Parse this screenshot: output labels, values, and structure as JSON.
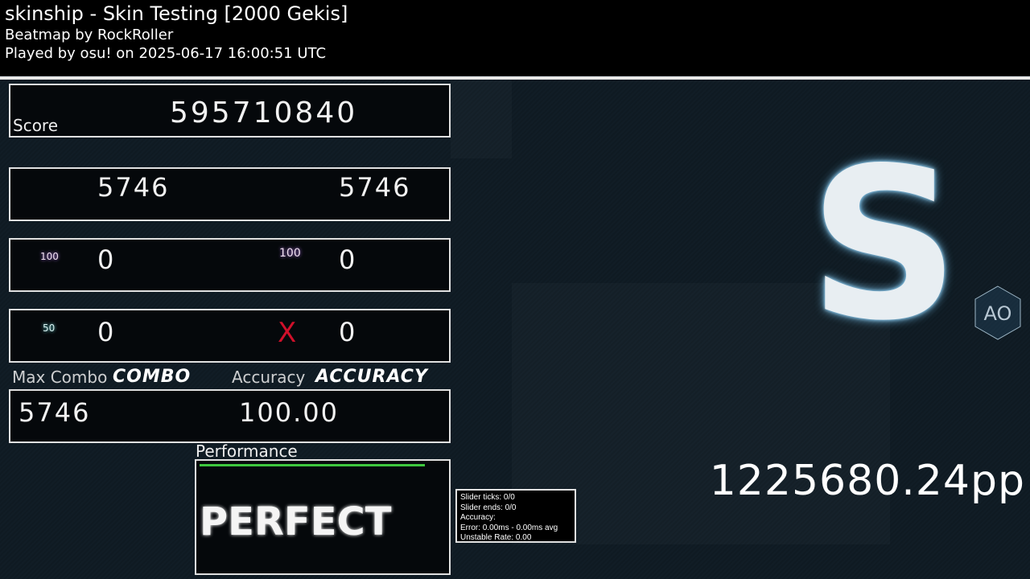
{
  "header": {
    "title": "skinship - Skin Testing [2000 Gekis]",
    "beatmap_by": "Beatmap by RockRoller",
    "played_by": "Played by osu! on 2025-06-17 16:00:51 UTC"
  },
  "score": {
    "label": "Score",
    "value": "595710840"
  },
  "hits": {
    "row1": {
      "left": "5746",
      "right": "5746"
    },
    "row2": {
      "left_icon": "100",
      "left": "0",
      "right_icon": "100",
      "right": "0"
    },
    "row3": {
      "left_icon": "50",
      "left": "0",
      "right_icon": "X",
      "right": "0"
    }
  },
  "combo": {
    "label": "Max Combo",
    "skin_label": "COMBO",
    "value": "5746"
  },
  "accuracy": {
    "label": "Accuracy",
    "skin_label": "ACCURACY",
    "value": "100.00"
  },
  "performance": {
    "label": "Performance",
    "graph_fill": 1.0,
    "graph_color": "#3ec83e",
    "stamp": "PERFECT"
  },
  "tooltip": {
    "lines": [
      "Slider ticks: 0/0",
      "Slider ends: 0/0",
      "Accuracy:",
      "Error: 0.00ms - 0.00ms avg",
      "Unstable Rate: 0.00"
    ]
  },
  "rank": {
    "grade": "S",
    "mod": "AO"
  },
  "pp": "1225680.24pp"
}
